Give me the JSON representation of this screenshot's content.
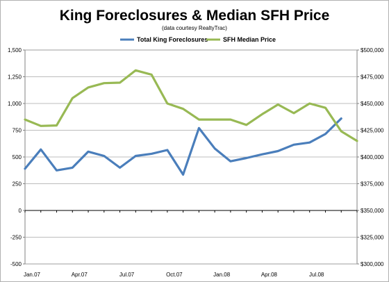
{
  "chart_data": {
    "type": "line",
    "title": "King Foreclosures & Median SFH Price",
    "subtitle": "(data courtesy RealtyTrac)",
    "colors": {
      "foreclosures": "#4a7ebb",
      "median": "#98b954"
    },
    "x_tick_labels": [
      "Jan.07",
      "Apr.07",
      "Jul.07",
      "Oct.07",
      "Jan.08",
      "Apr.08",
      "Jul.08"
    ],
    "left_axis": {
      "ylim": [
        -500,
        1500
      ],
      "ticks": [
        "-500",
        "-250",
        "0",
        "250",
        "500",
        "750",
        "1,000",
        "1,250",
        "1,500"
      ]
    },
    "right_axis": {
      "ylim": [
        300000,
        500000
      ],
      "ticks": [
        "$300,000",
        "$325,000",
        "$350,000",
        "$375,000",
        "$400,000",
        "$425,000",
        "$450,000",
        "$475,000",
        "$500,000"
      ]
    },
    "grid": true,
    "legend_position": "top",
    "series": [
      {
        "name": "Total King Foreclosures",
        "axis": "left",
        "values": [
          390,
          570,
          375,
          400,
          550,
          510,
          400,
          510,
          530,
          565,
          335,
          770,
          580,
          460,
          490,
          525,
          555,
          615,
          635,
          715,
          860
        ]
      },
      {
        "name": "SFH Median Price",
        "axis": "right",
        "values": [
          435000,
          429000,
          429500,
          455000,
          465000,
          469000,
          469500,
          481000,
          477000,
          450000,
          445000,
          435000,
          435000,
          435000,
          430000,
          440000,
          449000,
          441000,
          450000,
          446000,
          424000,
          415000
        ]
      }
    ]
  }
}
